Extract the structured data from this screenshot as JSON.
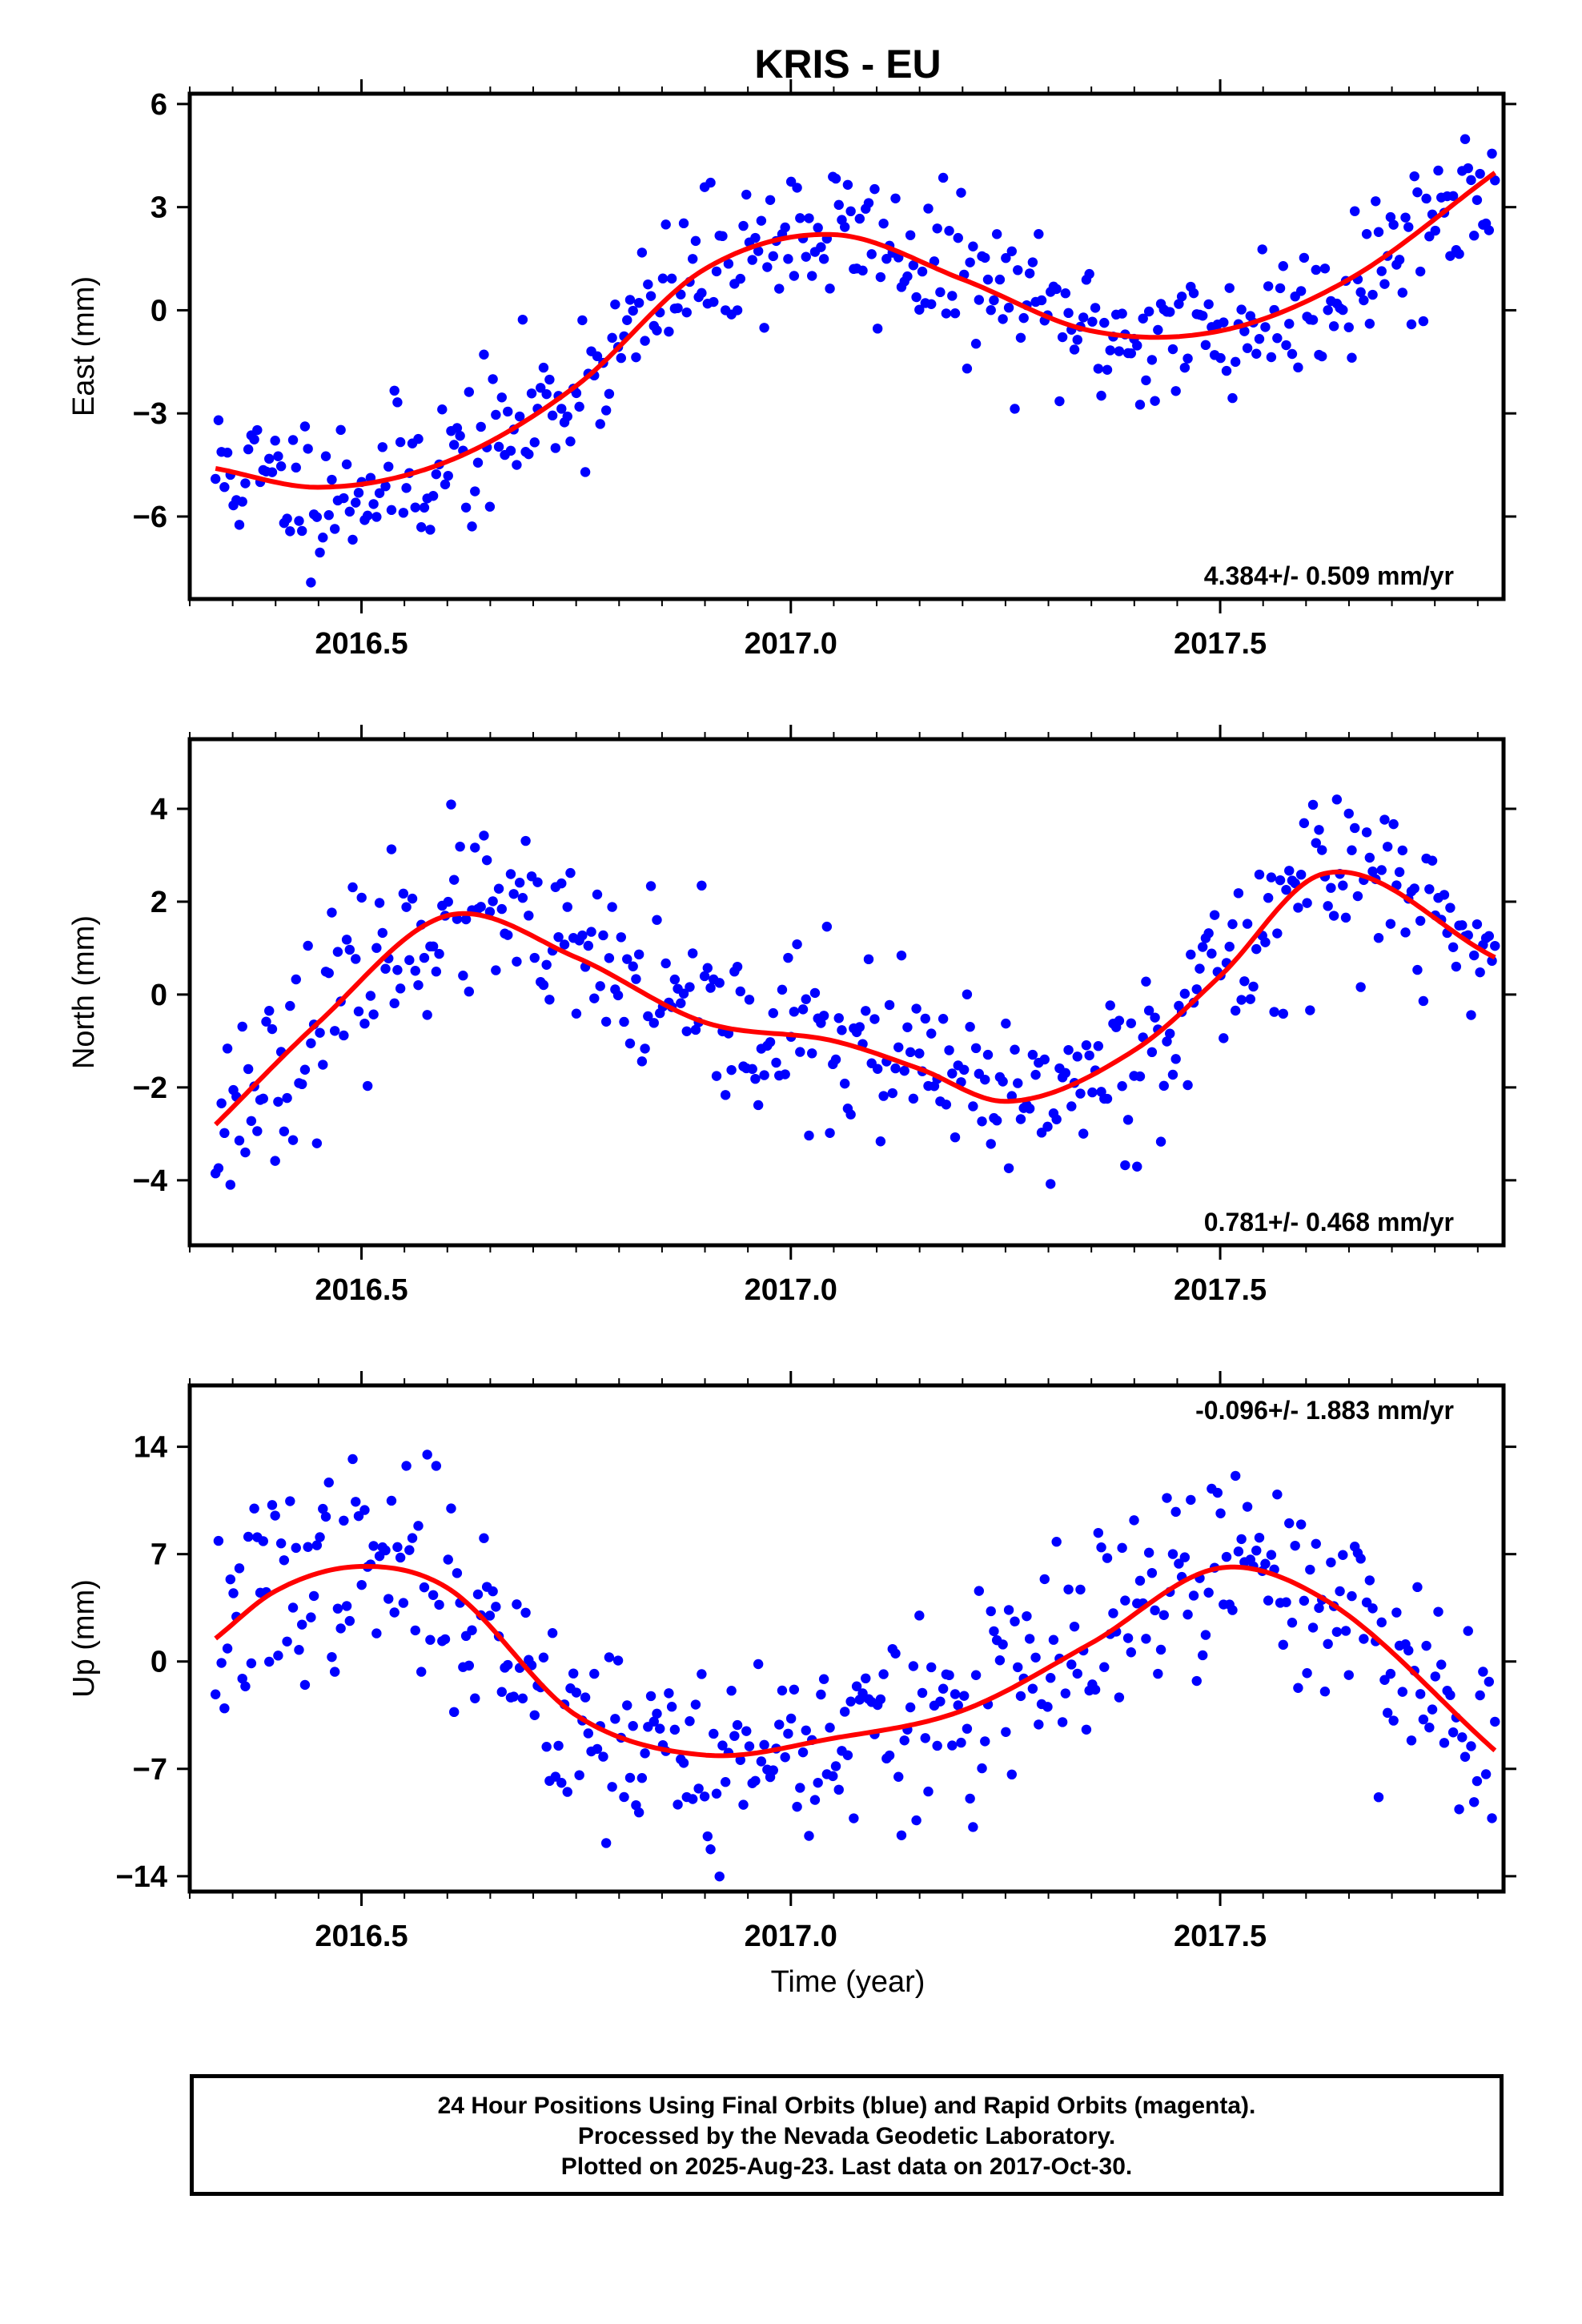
{
  "title": "KRIS - EU",
  "colors": {
    "points": "#0000ff",
    "fit": "#ff0000",
    "frame": "#000000"
  },
  "xlabel": "Time (year)",
  "footer": {
    "line1": "24 Hour Positions Using Final Orbits (blue) and Rapid Orbits (magenta).",
    "line2": "Processed by the Nevada Geodetic Laboratory.",
    "line3": "Plotted on 2025-Aug-23. Last data on 2017-Oct-30."
  },
  "chart_data": [
    {
      "type": "scatter",
      "ylabel": "East (mm)",
      "xlim": [
        2016.3,
        2017.83
      ],
      "ylim": [
        -8.4,
        6.3
      ],
      "xticks": [
        2016.5,
        2017.0,
        2017.5
      ],
      "xtick_labels": [
        "2016.5",
        "2017.0",
        "2017.5"
      ],
      "yticks": [
        6,
        3,
        0,
        -3,
        -6
      ],
      "ytick_labels": [
        "6",
        "3",
        "0",
        "−3",
        "−6"
      ],
      "rate_label": "4.384+/- 0.509 mm/yr",
      "rate_position": "bottom-right",
      "trend": {
        "x": [
          2016.33,
          2016.45,
          2016.6,
          2016.75,
          2016.9,
          2017.05,
          2017.2,
          2017.35,
          2017.5,
          2017.65,
          2017.82
        ],
        "y": [
          -4.6,
          -5.15,
          -4.4,
          -2.2,
          1.2,
          2.2,
          0.9,
          -0.6,
          -0.6,
          0.9,
          4.0
        ]
      },
      "scatter_model": {
        "start": 2016.33,
        "end": 2017.82,
        "n": 430,
        "noise": 1.1,
        "seed": 11
      }
    },
    {
      "type": "scatter",
      "ylabel": "North (mm)",
      "xlim": [
        2016.3,
        2017.83
      ],
      "ylim": [
        -5.4,
        5.5
      ],
      "xticks": [
        2016.5,
        2017.0,
        2017.5
      ],
      "xtick_labels": [
        "2016.5",
        "2017.0",
        "2017.5"
      ],
      "yticks": [
        4,
        2,
        0,
        -2,
        -4
      ],
      "ytick_labels": [
        "4",
        "2",
        "0",
        "−2",
        "−4"
      ],
      "rate_label": "0.781+/- 0.468 mm/yr",
      "rate_position": "bottom-right",
      "trend": {
        "x": [
          2016.33,
          2016.45,
          2016.6,
          2016.75,
          2016.9,
          2017.05,
          2017.15,
          2017.25,
          2017.4,
          2017.5,
          2017.62,
          2017.82
        ],
        "y": [
          -2.8,
          -0.6,
          1.7,
          0.8,
          -0.6,
          -1.0,
          -1.6,
          -2.3,
          -1.2,
          0.4,
          2.6,
          0.8
        ]
      },
      "scatter_model": {
        "start": 2016.33,
        "end": 2017.82,
        "n": 430,
        "noise": 0.95,
        "seed": 23
      }
    },
    {
      "type": "scatter",
      "ylabel": "Up (mm)",
      "xlim": [
        2016.3,
        2017.83
      ],
      "ylim": [
        -15,
        18
      ],
      "xticks": [
        2016.5,
        2017.0,
        2017.5
      ],
      "xtick_labels": [
        "2016.5",
        "2017.0",
        "2017.5"
      ],
      "yticks": [
        14,
        7,
        0,
        -7,
        -14
      ],
      "ytick_labels": [
        "14",
        "7",
        "0",
        "−7",
        "−14"
      ],
      "rate_label": "-0.096+/- 1.883 mm/yr",
      "rate_position": "top-right",
      "trend": {
        "x": [
          2016.33,
          2016.4,
          2016.5,
          2016.6,
          2016.75,
          2016.9,
          2017.05,
          2017.2,
          2017.35,
          2017.5,
          2017.62,
          2017.82
        ],
        "y": [
          1.5,
          4.6,
          6.2,
          4.8,
          -3.5,
          -6.1,
          -5.0,
          -3.2,
          1.2,
          6.1,
          4.1,
          -5.8
        ]
      },
      "scatter_model": {
        "start": 2016.33,
        "end": 2017.82,
        "n": 430,
        "noise": 3.3,
        "seed": 37
      }
    }
  ]
}
